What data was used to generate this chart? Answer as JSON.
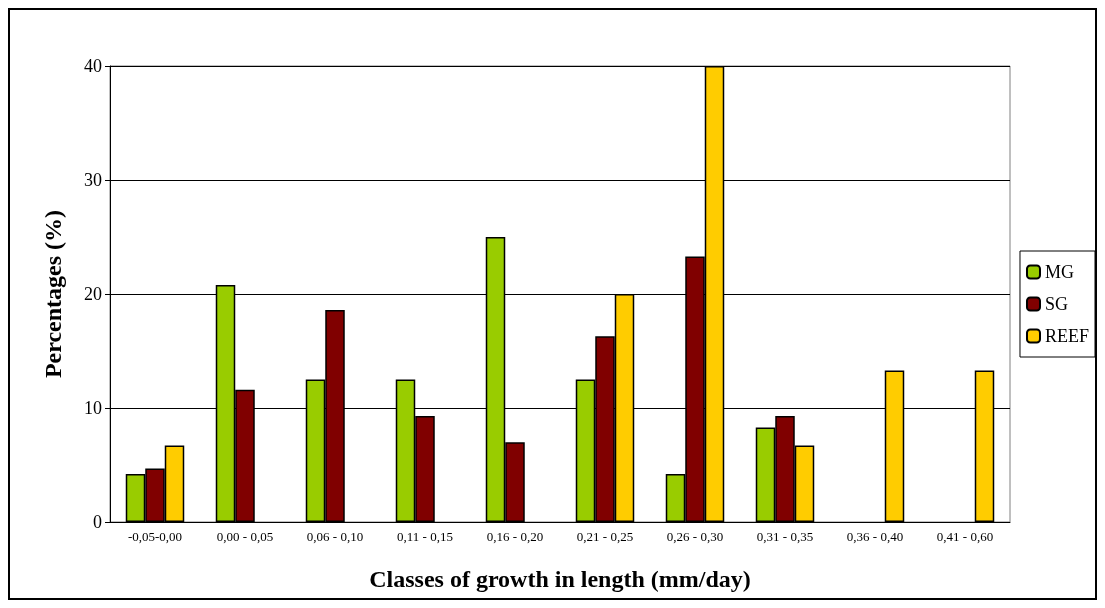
{
  "chart_data": {
    "type": "bar",
    "xlabel": "Classes of growth in length (mm/day)",
    "ylabel": "Percentages (%)",
    "categories": [
      "-0,05-0,00",
      "0,00 - 0,05",
      "0,06 - 0,10",
      "0,11 - 0,15",
      "0,16 - 0,20",
      "0,21 - 0,25",
      "0,26 - 0,30",
      "0,31 - 0,35",
      "0,36 - 0,40",
      "0,41 - 0,60"
    ],
    "series": [
      {
        "name": "MG",
        "color": "#99cc00",
        "values": [
          4.2,
          20.8,
          12.5,
          12.5,
          25,
          12.5,
          4.2,
          8.3,
          null,
          null
        ]
      },
      {
        "name": "SG",
        "color": "#800000",
        "values": [
          4.7,
          11.6,
          18.6,
          9.3,
          7.0,
          16.3,
          23.3,
          9.3,
          null,
          null
        ]
      },
      {
        "name": "REEF",
        "color": "#ffcc00",
        "values": [
          6.7,
          null,
          null,
          null,
          null,
          20,
          40,
          6.7,
          13.3,
          13.3
        ]
      }
    ],
    "ylim": [
      0,
      40
    ],
    "yticks": [
      0,
      10,
      20,
      30,
      40
    ],
    "grid": "y",
    "legend": "right"
  }
}
